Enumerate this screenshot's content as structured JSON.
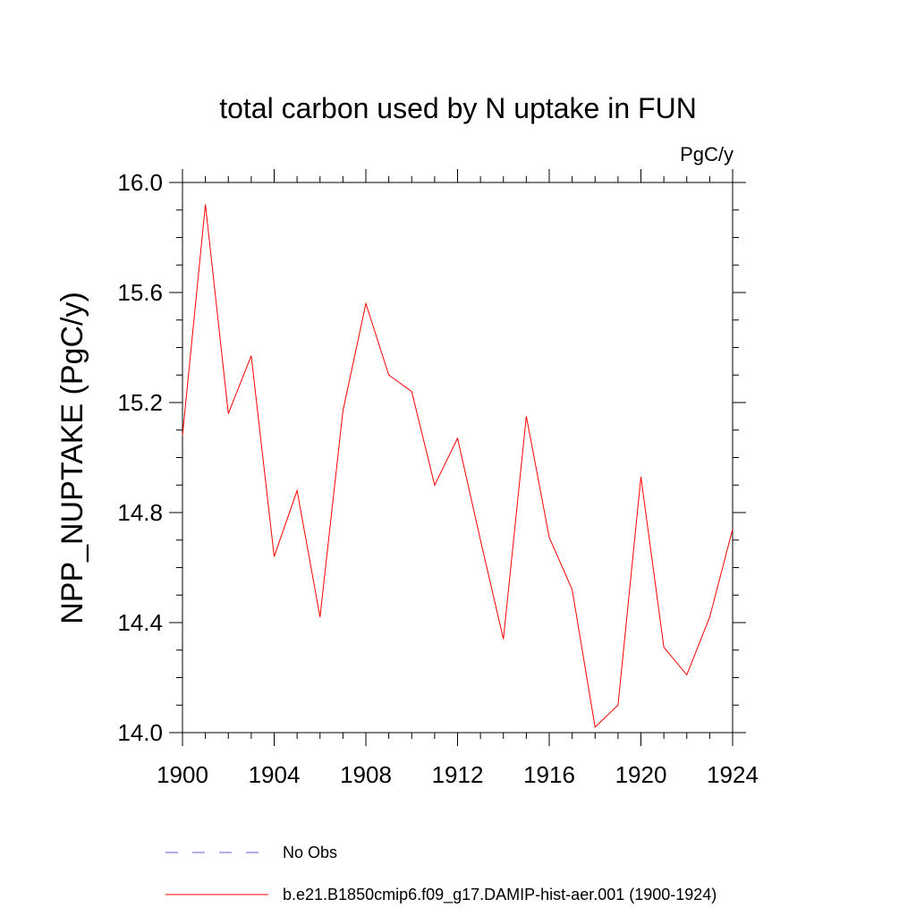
{
  "chart_data": {
    "type": "line",
    "title": "total carbon used by N uptake in FUN",
    "units": "PgC/y",
    "ylabel": "NPP_NUPTAKE  (PgC/y)",
    "xlabel": "",
    "xlim": [
      1900,
      1924
    ],
    "ylim": [
      14.0,
      16.0
    ],
    "x_ticks": [
      "1900",
      "1904",
      "1908",
      "1912",
      "1916",
      "1920",
      "1924"
    ],
    "y_ticks": [
      "14.0",
      "14.4",
      "14.8",
      "15.2",
      "15.6",
      "16.0"
    ],
    "x": [
      1900,
      1901,
      1902,
      1903,
      1904,
      1905,
      1906,
      1907,
      1908,
      1909,
      1910,
      1911,
      1912,
      1913,
      1914,
      1915,
      1916,
      1917,
      1918,
      1919,
      1920,
      1921,
      1922,
      1923,
      1924
    ],
    "series": [
      {
        "name": "b.e21.B1850cmip6.f09_g17.DAMIP-hist-aer.001 (1900-1924)",
        "color": "#ff0000",
        "values": [
          15.08,
          15.92,
          15.16,
          15.37,
          14.64,
          14.88,
          14.42,
          15.17,
          15.56,
          15.3,
          15.24,
          14.9,
          15.07,
          14.7,
          14.34,
          15.15,
          14.71,
          14.52,
          14.02,
          14.1,
          14.93,
          14.31,
          14.21,
          14.42,
          14.74
        ]
      }
    ],
    "legend": {
      "placement": "bottom",
      "entries": [
        {
          "label": "No Obs",
          "color": "#6a5acd",
          "style": "dashed"
        },
        {
          "label": "b.e21.B1850cmip6.f09_g17.DAMIP-hist-aer.001 (1900-1924)",
          "color": "#ff0000",
          "style": "solid"
        }
      ]
    },
    "grid": false
  }
}
